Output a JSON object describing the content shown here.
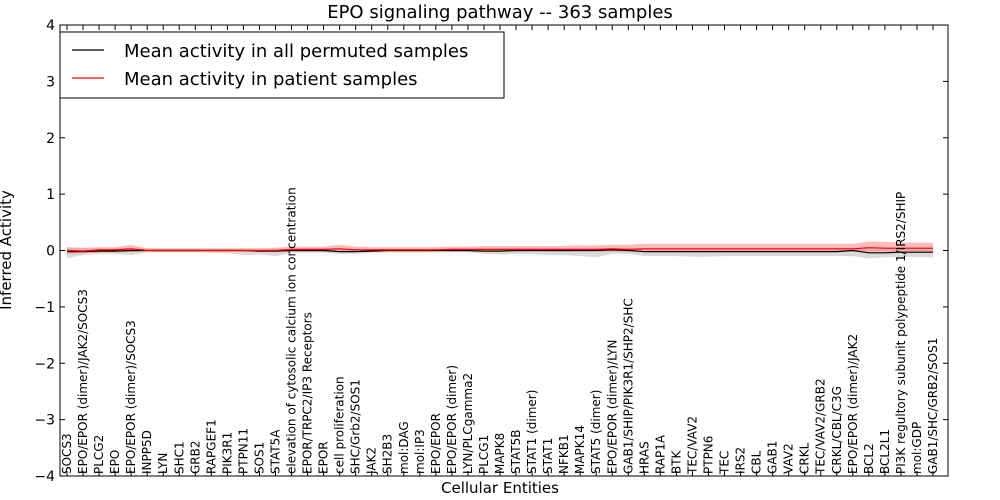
{
  "chart_data": {
    "type": "line",
    "title": "EPO signaling pathway -- 363 samples",
    "xlabel": "Cellular Entities",
    "ylabel": "Inferred Activity",
    "ylim": [
      -4,
      4
    ],
    "yticks": [
      -4,
      -3,
      -2,
      -1,
      0,
      1,
      2,
      3,
      4
    ],
    "ytick_labels": [
      "−4",
      "−3",
      "−2",
      "−1",
      "0",
      "1",
      "2",
      "3",
      "4"
    ],
    "grid": false,
    "legend_position": "top-left",
    "categories": [
      "SOCS3",
      "EPO/EPOR (dimer)/JAK2/SOCS3",
      "PLCG2",
      "EPO",
      "EPO/EPOR (dimer)/SOCS3",
      "INPP5D",
      "LYN",
      "SHC1",
      "GRB2",
      "RAPGEF1",
      "PIK3R1",
      "PTPN11",
      "SOS1",
      "STAT5A",
      "elevation of cytosolic calcium ion concentration",
      "EPOR/TRPC2/IP3 Receptors",
      "EPOR",
      "cell proliferation",
      "SHC/Grb2/SOS1",
      "JAK2",
      "SH2B3",
      "mol:DAG",
      "mol:IP3",
      "EPO/EPOR",
      "EPO/EPOR (dimer)",
      "LYN/PLCgamma2",
      "PLCG1",
      "MAPK8",
      "STAT5B",
      "STAT1 (dimer)",
      "STAT1",
      "NFKB1",
      "MAPK14",
      "STAT5 (dimer)",
      "EPO/EPOR (dimer)/LYN",
      "GAB1/SHIP/PIK3R1/SHP2/SHC",
      "HRAS",
      "RAP1A",
      "BTK",
      "TEC/VAV2",
      "PTPN6",
      "TEC",
      "IRS2",
      "CBL",
      "GAB1",
      "VAV2",
      "CRKL",
      "TEC/VAV2/GRB2",
      "CRKL/CBL/C3G",
      "EPO/EPOR (dimer)/JAK2",
      "BCL2",
      "BCL2L1",
      "PI3K regultory subunit polypeptide 1/IRS2/SHIP",
      "mol:GDP",
      "GAB1/SHC/GRB2/SOS1"
    ],
    "series": [
      {
        "name": "Mean activity in all permuted samples",
        "color": "#000000",
        "band_color": "#bbbbbb",
        "values": [
          -0.02,
          -0.02,
          -0.01,
          -0.01,
          0.0,
          0.0,
          0.0,
          0.0,
          0.0,
          0.0,
          0.0,
          0.0,
          -0.01,
          -0.01,
          0.0,
          0.0,
          0.0,
          -0.02,
          -0.02,
          -0.01,
          0.0,
          0.0,
          0.0,
          0.0,
          0.0,
          0.0,
          -0.01,
          -0.01,
          0.0,
          0.0,
          0.0,
          0.0,
          0.0,
          0.0,
          0.01,
          0.0,
          -0.02,
          -0.02,
          -0.02,
          -0.02,
          -0.02,
          -0.02,
          -0.02,
          -0.02,
          -0.02,
          -0.02,
          -0.02,
          -0.02,
          -0.02,
          0.0,
          -0.04,
          -0.04,
          -0.03,
          -0.03,
          -0.03
        ],
        "lower": [
          -0.14,
          -0.08,
          -0.06,
          -0.06,
          -0.08,
          -0.03,
          -0.03,
          -0.03,
          -0.03,
          -0.04,
          -0.05,
          -0.08,
          -0.07,
          -0.1,
          -0.04,
          -0.04,
          -0.04,
          -0.06,
          -0.06,
          -0.04,
          -0.04,
          -0.04,
          -0.04,
          -0.03,
          -0.03,
          -0.03,
          -0.06,
          -0.07,
          -0.06,
          -0.07,
          -0.08,
          -0.08,
          -0.1,
          -0.12,
          -0.06,
          -0.06,
          -0.1,
          -0.1,
          -0.1,
          -0.11,
          -0.11,
          -0.1,
          -0.1,
          -0.1,
          -0.1,
          -0.1,
          -0.1,
          -0.1,
          -0.1,
          -0.1,
          -0.14,
          -0.12,
          -0.12,
          -0.12,
          -0.12
        ],
        "upper": [
          0.05,
          0.04,
          0.04,
          0.04,
          0.04,
          0.03,
          0.03,
          0.03,
          0.03,
          0.03,
          0.03,
          0.03,
          0.03,
          0.03,
          0.03,
          0.03,
          0.03,
          0.02,
          0.02,
          0.03,
          0.03,
          0.03,
          0.03,
          0.03,
          0.03,
          0.03,
          0.03,
          0.03,
          0.03,
          0.03,
          0.03,
          0.03,
          0.03,
          0.03,
          0.04,
          0.03,
          0.04,
          0.04,
          0.04,
          0.04,
          0.04,
          0.04,
          0.04,
          0.04,
          0.04,
          0.04,
          0.04,
          0.04,
          0.04,
          0.04,
          0.04,
          0.04,
          0.04,
          0.04,
          0.04
        ]
      },
      {
        "name": "Mean activity in patient samples",
        "color": "#ff0000",
        "band_color": "#ff7777",
        "values": [
          0.0,
          -0.01,
          0.01,
          0.01,
          0.03,
          0.0,
          0.0,
          0.0,
          0.0,
          0.0,
          0.0,
          0.0,
          0.0,
          0.0,
          0.02,
          0.02,
          0.02,
          0.03,
          0.01,
          0.01,
          0.01,
          0.01,
          0.01,
          0.01,
          0.02,
          0.02,
          0.02,
          0.02,
          0.02,
          0.02,
          0.02,
          0.02,
          0.02,
          0.02,
          0.03,
          0.02,
          0.03,
          0.03,
          0.03,
          0.03,
          0.03,
          0.03,
          0.03,
          0.03,
          0.03,
          0.03,
          0.03,
          0.03,
          0.03,
          0.03,
          0.05,
          0.04,
          0.04,
          0.04,
          0.04
        ],
        "lower": [
          -0.06,
          -0.05,
          -0.03,
          -0.03,
          -0.03,
          -0.02,
          -0.02,
          -0.02,
          -0.02,
          -0.02,
          -0.02,
          -0.02,
          -0.02,
          -0.02,
          -0.02,
          -0.02,
          -0.02,
          -0.02,
          -0.02,
          -0.02,
          -0.02,
          -0.02,
          -0.02,
          -0.02,
          -0.02,
          -0.02,
          -0.02,
          -0.02,
          -0.02,
          -0.02,
          -0.02,
          -0.02,
          -0.02,
          -0.02,
          -0.02,
          -0.02,
          -0.02,
          -0.02,
          -0.02,
          -0.02,
          -0.02,
          -0.02,
          -0.02,
          -0.02,
          -0.02,
          -0.02,
          -0.02,
          -0.02,
          -0.02,
          -0.02,
          -0.02,
          -0.02,
          -0.02,
          -0.02,
          -0.02
        ],
        "upper": [
          0.06,
          0.05,
          0.06,
          0.06,
          0.1,
          0.04,
          0.04,
          0.04,
          0.04,
          0.04,
          0.04,
          0.04,
          0.04,
          0.05,
          0.07,
          0.07,
          0.07,
          0.1,
          0.07,
          0.06,
          0.06,
          0.06,
          0.06,
          0.06,
          0.07,
          0.07,
          0.08,
          0.08,
          0.08,
          0.08,
          0.08,
          0.08,
          0.09,
          0.09,
          0.1,
          0.1,
          0.12,
          0.12,
          0.12,
          0.12,
          0.12,
          0.12,
          0.12,
          0.12,
          0.12,
          0.12,
          0.12,
          0.12,
          0.12,
          0.12,
          0.16,
          0.15,
          0.14,
          0.14,
          0.14
        ]
      }
    ]
  }
}
